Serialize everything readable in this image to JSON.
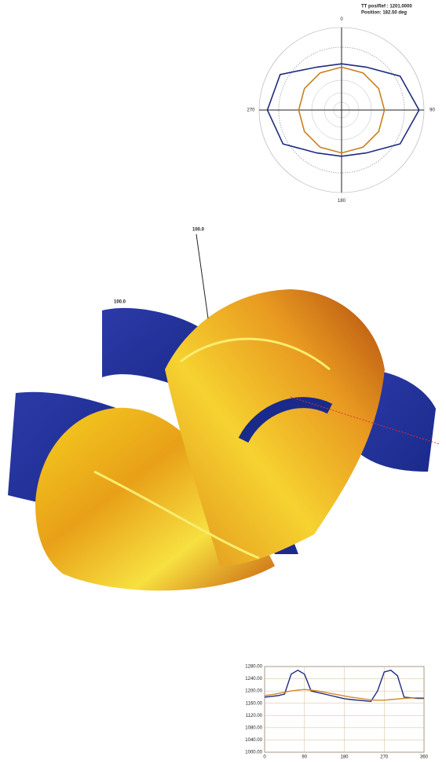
{
  "header": {
    "line1": "TT pos/Ref :   1201.0000",
    "line2": "Position: 182.50 deg"
  },
  "chart_data": [
    {
      "type": "polar",
      "theta": [
        0,
        30,
        60,
        90,
        120,
        150,
        180,
        210,
        240,
        270,
        300,
        330
      ],
      "thetaticks": [
        0,
        90,
        180,
        270
      ],
      "rlim": [
        0,
        100
      ],
      "series": [
        {
          "color": "#1f2a80",
          "values": [
            56,
            60,
            82,
            94,
            82,
            60,
            56,
            60,
            82,
            90,
            86,
            60
          ]
        },
        {
          "color": "#c8801e",
          "values": [
            52,
            52,
            52,
            52,
            52,
            52,
            52,
            52,
            52,
            52,
            52,
            52
          ]
        }
      ]
    },
    {
      "type": "line",
      "x": [
        0,
        15,
        30,
        45,
        60,
        75,
        90,
        105,
        120,
        135,
        150,
        165,
        180,
        195,
        210,
        225,
        240,
        255,
        270,
        285,
        300,
        315,
        330,
        345,
        360
      ],
      "xlim": [
        0,
        360
      ],
      "xticks": [
        0,
        90,
        180,
        270,
        360
      ],
      "ylim": [
        1000,
        1280
      ],
      "yticks": [
        {
          "value": 1000,
          "label": "1000.00"
        },
        {
          "value": 1040,
          "label": "1040.00"
        },
        {
          "value": 1080,
          "label": "1080.00"
        },
        {
          "value": 1120,
          "label": "1120.00"
        },
        {
          "value": 1160,
          "label": "1160.00"
        },
        {
          "value": 1200,
          "label": "1200.00"
        },
        {
          "value": 1240,
          "label": "1240.00"
        },
        {
          "value": 1280,
          "label": "1280.00"
        }
      ],
      "grid": true,
      "series": [
        {
          "color": "#1f2a80",
          "values": [
            1180,
            1182,
            1185,
            1190,
            1255,
            1268,
            1255,
            1200,
            1195,
            1190,
            1185,
            1180,
            1175,
            1172,
            1170,
            1168,
            1166,
            1200,
            1262,
            1268,
            1250,
            1180,
            1178,
            1176,
            1176
          ]
        },
        {
          "color": "#d08a2a",
          "values": [
            1185,
            1188,
            1192,
            1196,
            1200,
            1203,
            1205,
            1203,
            1200,
            1196,
            1192,
            1188,
            1184,
            1180,
            1177,
            1174,
            1171,
            1170,
            1170,
            1172,
            1174,
            1176,
            1177,
            1178,
            1178
          ]
        }
      ]
    }
  ],
  "render": {
    "labels": [
      "100.0",
      "100.0"
    ]
  }
}
